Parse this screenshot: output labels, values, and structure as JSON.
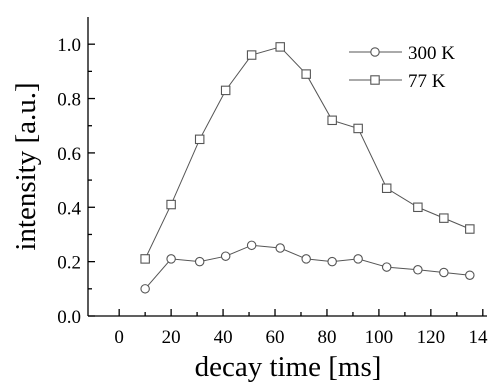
{
  "chart_data": {
    "type": "line",
    "xlabel": "decay time [ms]",
    "ylabel": "intensity [a.u.]",
    "xlim": [
      -12,
      142
    ],
    "ylim": [
      0,
      1.1
    ],
    "x_ticks": [
      0,
      20,
      40,
      60,
      80,
      100,
      120,
      140
    ],
    "y_ticks": [
      0.0,
      0.2,
      0.4,
      0.6,
      0.8,
      1.0
    ],
    "x_tick_labels": [
      "0",
      "20",
      "40",
      "60",
      "80",
      "100",
      "120",
      "140"
    ],
    "y_tick_labels": [
      "0.0",
      "0.2",
      "0.4",
      "0.6",
      "0.8",
      "1.0"
    ],
    "legend_position": "top-right",
    "grid": false,
    "series": [
      {
        "name": "300 K",
        "marker": "circle",
        "x": [
          10,
          20,
          31,
          41,
          51,
          62,
          72,
          82,
          92,
          103,
          115,
          125,
          135
        ],
        "y": [
          0.1,
          0.21,
          0.2,
          0.22,
          0.26,
          0.25,
          0.21,
          0.2,
          0.21,
          0.18,
          0.17,
          0.16,
          0.15
        ]
      },
      {
        "name": "77 K",
        "marker": "square",
        "x": [
          10,
          20,
          31,
          41,
          51,
          62,
          72,
          82,
          92,
          103,
          115,
          125,
          135
        ],
        "y": [
          0.21,
          0.41,
          0.65,
          0.83,
          0.96,
          0.99,
          0.89,
          0.72,
          0.69,
          0.47,
          0.4,
          0.36,
          0.32
        ]
      }
    ]
  }
}
